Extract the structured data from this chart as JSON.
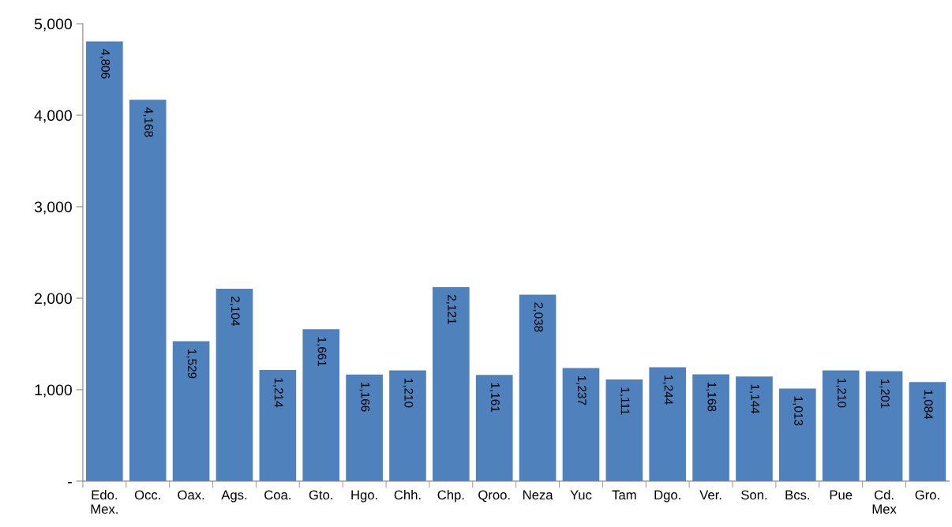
{
  "chart_data": {
    "type": "bar",
    "categories": [
      "Edo.\nMex.",
      "Occ.",
      "Oax.",
      "Ags.",
      "Coa.",
      "Gto.",
      "Hgo.",
      "Chh.",
      "Chp.",
      "Qroo.",
      "Neza",
      "Yuc",
      "Tam",
      "Dgo.",
      "Ver.",
      "Son.",
      "Bcs.",
      "Pue",
      "Cd.\nMex",
      "Gro."
    ],
    "values": [
      4806,
      4168,
      1529,
      2104,
      1214,
      1661,
      1166,
      1210,
      2121,
      1161,
      2038,
      1237,
      1111,
      1244,
      1168,
      1144,
      1013,
      1210,
      1201,
      1084
    ],
    "value_labels": [
      "4,806",
      "4,168",
      "1,529",
      "2,104",
      "1,214",
      "1,661",
      "1,166",
      "1,210",
      "2,121",
      "1,161",
      "2,038",
      "1,237",
      "1,111",
      "1,244",
      "1,168",
      "1,144",
      "1,013",
      "1,210",
      "1,201",
      "1,084"
    ],
    "color": "#4f81bd",
    "ylim": [
      0,
      5000
    ],
    "yticks": [
      {
        "value": 0,
        "label": "-"
      },
      {
        "value": 1000,
        "label": "1,000"
      },
      {
        "value": 2000,
        "label": "2,000"
      },
      {
        "value": 3000,
        "label": "3,000"
      },
      {
        "value": 4000,
        "label": "4,000"
      },
      {
        "value": 5000,
        "label": "5,000"
      }
    ],
    "grid": false,
    "legend": false
  }
}
